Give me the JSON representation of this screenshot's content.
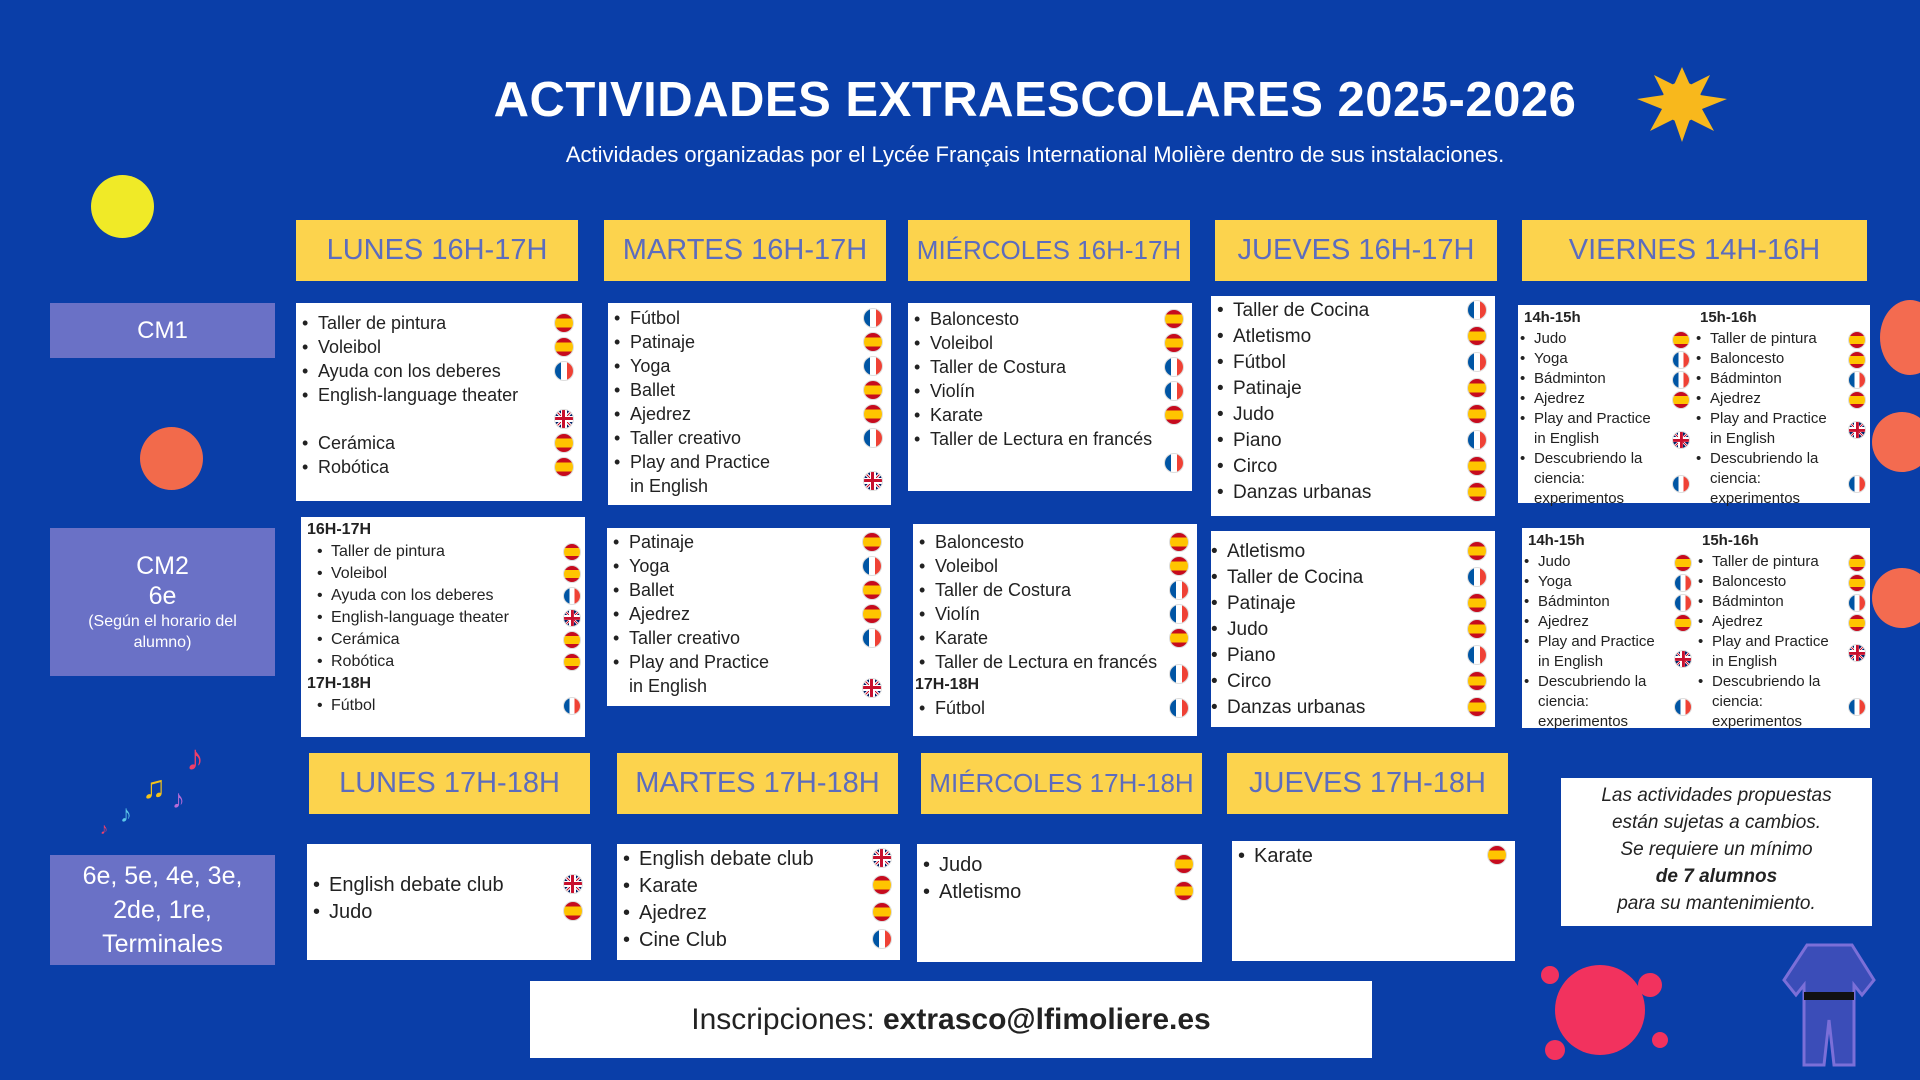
{
  "header": {
    "title": "ACTIVIDADES EXTRAESCOLARES  2025-2026",
    "subtitle": "Actividades organizadas por el Lycée Français International Molière dentro de sus instalaciones."
  },
  "levels": {
    "cm1": "CM1",
    "cm2_line1": "CM2",
    "cm2_line2": "6e",
    "cm2_note": "(Según el horario del alumno)",
    "secondary": "6e, 5e, 4e, 3e, 2de, 1re, Terminales"
  },
  "days_top": [
    "LUNES 16H-17H",
    "MARTES 16H-17H",
    "MIÉRCOLES 16H-17H",
    "JUEVES 16H-17H",
    "VIERNES 14H-16H"
  ],
  "days_bottom": [
    "LUNES 17H-18H",
    "MARTES 17H-18H",
    "MIÉRCOLES 17H-18H",
    "JUEVES 17H-18H"
  ],
  "cm1": {
    "lunes": [
      "Taller de pintura",
      "Voleibol",
      "Ayuda con los deberes",
      "English-language theater",
      "Cerámica",
      "Robótica"
    ],
    "martes": [
      "Fútbol",
      "Patinaje",
      "Yoga",
      "Ballet",
      "Ajedrez",
      "Taller creativo",
      "Play and Practice in English"
    ],
    "miercoles": [
      "Baloncesto",
      "Voleibol",
      "Taller de Costura",
      "Violín",
      "Karate",
      "Taller de Lectura en francés"
    ],
    "jueves": [
      "Taller de Cocina",
      "Atletismo",
      "Fútbol",
      "Patinaje",
      "Judo",
      "Piano",
      "Circo",
      "Danzas urbanas"
    ],
    "viernes_a_label": "14h-15h",
    "viernes_a": [
      "Judo",
      "Yoga",
      "Bádminton",
      "Ajedrez",
      "Play and Practice in English",
      "Descubriendo la ciencia: experimentos"
    ],
    "viernes_b_label": "15h-16h",
    "viernes_b": [
      "Taller de pintura",
      "Baloncesto",
      "Bádminton",
      "Ajedrez",
      "Play and Practice in English",
      "Descubriendo la ciencia: experimentos"
    ]
  },
  "cm2": {
    "lunes_label1": "16H-17H",
    "lunes": [
      "Taller de pintura",
      "Voleibol",
      "Ayuda con los deberes",
      "English-language theater",
      "Cerámica",
      "Robótica"
    ],
    "lunes_label2": "17H-18H",
    "lunes_2": [
      "Fútbol"
    ],
    "martes": [
      "Patinaje",
      "Yoga",
      "Ballet",
      "Ajedrez",
      "Taller creativo",
      "Play and Practice in English"
    ],
    "miercoles": [
      "Baloncesto",
      "Voleibol",
      "Taller de Costura",
      "Violín",
      "Karate",
      "Taller de Lectura en francés"
    ],
    "miercoles_label2": "17H-18H",
    "miercoles_2": [
      "Fútbol"
    ],
    "jueves": [
      "Atletismo",
      "Taller de Cocina",
      "Patinaje",
      "Judo",
      "Piano",
      "Circo",
      "Danzas urbanas"
    ],
    "viernes_a_label": "14h-15h",
    "viernes_a": [
      "Judo",
      "Yoga",
      "Bádminton",
      "Ajedrez",
      "Play and Practice in English",
      "Descubriendo la ciencia: experimentos"
    ],
    "viernes_b_label": "15h-16h",
    "viernes_b": [
      "Taller de pintura",
      "Baloncesto",
      "Bádminton",
      "Ajedrez",
      "Play and Practice in English",
      "Descubriendo la ciencia: experimentos"
    ]
  },
  "secondary": {
    "lunes": [
      "English debate club",
      "Judo"
    ],
    "martes": [
      "English debate club",
      "Karate",
      "Ajedrez",
      "Cine Club"
    ],
    "miercoles": [
      "Judo",
      "Atletismo"
    ],
    "jueves": [
      "Karate"
    ]
  },
  "note": {
    "l1": "Las actividades propuestas",
    "l2": "están sujetas a cambios.",
    "l3": "Se requiere un mínimo",
    "l4": "de 7 alumnos",
    "l5": "para su mantenimiento."
  },
  "footer": {
    "label": "Inscripciones: ",
    "email": "extrasco@lfimoliere.es"
  },
  "colors": {
    "background": "#0a3ea8",
    "header": "#fcd34d",
    "side": "#6a71c6"
  }
}
